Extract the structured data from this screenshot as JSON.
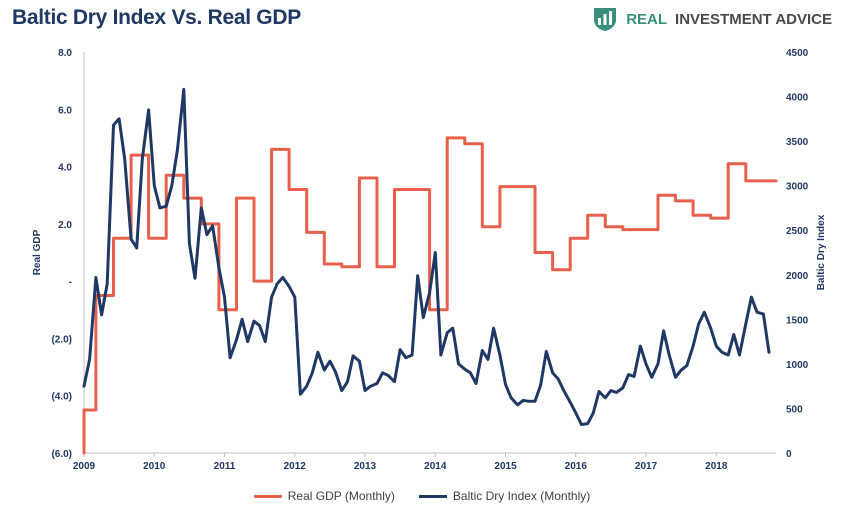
{
  "title": "Baltic Dry Index Vs. Real GDP",
  "brand": {
    "text_real": "REAL",
    "text_rest": "INVESTMENT ADVICE",
    "color": "#3a8f7c",
    "icon": "bar-chart-shield-icon"
  },
  "colors": {
    "gdp": "#e8604c",
    "bdi": "#1f3864",
    "title": "#1f3864"
  },
  "chart_data": {
    "type": "line",
    "title": "Baltic Dry Index Vs. Real GDP",
    "ylabel": "Real GDP",
    "y2label": "Baltic Dry Index",
    "xlim": [
      2009,
      2018.85
    ],
    "ylim": [
      -6,
      8
    ],
    "y2lim": [
      0,
      4500
    ],
    "x_ticks": [
      "2009",
      "2010",
      "2011",
      "2012",
      "2013",
      "2014",
      "2015",
      "2016",
      "2017",
      "2018"
    ],
    "y_ticks": [
      "8.0",
      "6.0",
      "4.0",
      "2.0",
      "-",
      "(2.0)",
      "(4.0)",
      "(6.0)"
    ],
    "y2_ticks": [
      "4500",
      "4000",
      "3500",
      "3000",
      "2500",
      "2000",
      "1500",
      "1000",
      "500",
      "0"
    ],
    "grid": false,
    "legend_position": "bottom",
    "series": [
      {
        "name": "Real GDP (Monthly)",
        "axis": "left",
        "step": true,
        "points": [
          [
            2009.0,
            -6.0
          ],
          [
            2009.0,
            -4.5
          ],
          [
            2009.17,
            -4.5
          ],
          [
            2009.17,
            -0.5
          ],
          [
            2009.42,
            -0.5
          ],
          [
            2009.42,
            1.5
          ],
          [
            2009.67,
            1.5
          ],
          [
            2009.67,
            4.4
          ],
          [
            2009.92,
            4.4
          ],
          [
            2009.92,
            1.5
          ],
          [
            2010.17,
            1.5
          ],
          [
            2010.17,
            3.7
          ],
          [
            2010.42,
            3.7
          ],
          [
            2010.42,
            2.9
          ],
          [
            2010.67,
            2.9
          ],
          [
            2010.67,
            2.0
          ],
          [
            2010.92,
            2.0
          ],
          [
            2010.92,
            -1.0
          ],
          [
            2011.17,
            -1.0
          ],
          [
            2011.17,
            2.9
          ],
          [
            2011.42,
            2.9
          ],
          [
            2011.42,
            0.0
          ],
          [
            2011.67,
            0.0
          ],
          [
            2011.67,
            4.6
          ],
          [
            2011.92,
            4.6
          ],
          [
            2011.92,
            3.2
          ],
          [
            2012.17,
            3.2
          ],
          [
            2012.17,
            1.7
          ],
          [
            2012.42,
            1.7
          ],
          [
            2012.42,
            0.6
          ],
          [
            2012.67,
            0.6
          ],
          [
            2012.67,
            0.5
          ],
          [
            2012.92,
            0.5
          ],
          [
            2012.92,
            3.6
          ],
          [
            2013.17,
            3.6
          ],
          [
            2013.17,
            0.5
          ],
          [
            2013.42,
            0.5
          ],
          [
            2013.42,
            3.2
          ],
          [
            2013.67,
            3.2
          ],
          [
            2013.67,
            3.2
          ],
          [
            2013.92,
            3.2
          ],
          [
            2013.92,
            -1.0
          ],
          [
            2014.17,
            -1.0
          ],
          [
            2014.17,
            5.0
          ],
          [
            2014.42,
            5.0
          ],
          [
            2014.42,
            4.8
          ],
          [
            2014.67,
            4.8
          ],
          [
            2014.67,
            1.9
          ],
          [
            2014.92,
            1.9
          ],
          [
            2014.92,
            3.3
          ],
          [
            2015.17,
            3.3
          ],
          [
            2015.17,
            3.3
          ],
          [
            2015.42,
            3.3
          ],
          [
            2015.42,
            1.0
          ],
          [
            2015.67,
            1.0
          ],
          [
            2015.67,
            0.4
          ],
          [
            2015.92,
            0.4
          ],
          [
            2015.92,
            1.5
          ],
          [
            2016.17,
            1.5
          ],
          [
            2016.17,
            2.3
          ],
          [
            2016.42,
            2.3
          ],
          [
            2016.42,
            1.9
          ],
          [
            2016.67,
            1.9
          ],
          [
            2016.67,
            1.8
          ],
          [
            2016.92,
            1.8
          ],
          [
            2016.92,
            1.8
          ],
          [
            2017.17,
            1.8
          ],
          [
            2017.17,
            3.0
          ],
          [
            2017.42,
            3.0
          ],
          [
            2017.42,
            2.8
          ],
          [
            2017.67,
            2.8
          ],
          [
            2017.67,
            2.3
          ],
          [
            2017.92,
            2.3
          ],
          [
            2017.92,
            2.2
          ],
          [
            2018.17,
            2.2
          ],
          [
            2018.17,
            4.1
          ],
          [
            2018.42,
            4.1
          ],
          [
            2018.42,
            3.5
          ],
          [
            2018.85,
            3.5
          ]
        ]
      },
      {
        "name": "Baltic Dry Index (Monthly)",
        "axis": "right",
        "step": false,
        "points": [
          [
            2009.0,
            750
          ],
          [
            2009.08,
            1050
          ],
          [
            2009.17,
            1970
          ],
          [
            2009.25,
            1550
          ],
          [
            2009.33,
            1900
          ],
          [
            2009.42,
            3680
          ],
          [
            2009.5,
            3750
          ],
          [
            2009.58,
            3300
          ],
          [
            2009.67,
            2400
          ],
          [
            2009.75,
            2300
          ],
          [
            2009.83,
            3300
          ],
          [
            2009.92,
            3850
          ],
          [
            2010.0,
            3000
          ],
          [
            2010.08,
            2750
          ],
          [
            2010.17,
            2770
          ],
          [
            2010.25,
            3000
          ],
          [
            2010.33,
            3400
          ],
          [
            2010.42,
            4080
          ],
          [
            2010.5,
            2350
          ],
          [
            2010.58,
            1960
          ],
          [
            2010.67,
            2750
          ],
          [
            2010.75,
            2450
          ],
          [
            2010.83,
            2550
          ],
          [
            2010.92,
            2080
          ],
          [
            2011.0,
            1750
          ],
          [
            2011.08,
            1070
          ],
          [
            2011.17,
            1270
          ],
          [
            2011.25,
            1500
          ],
          [
            2011.33,
            1250
          ],
          [
            2011.42,
            1480
          ],
          [
            2011.5,
            1430
          ],
          [
            2011.58,
            1250
          ],
          [
            2011.67,
            1750
          ],
          [
            2011.75,
            1900
          ],
          [
            2011.83,
            1970
          ],
          [
            2011.92,
            1870
          ],
          [
            2012.0,
            1750
          ],
          [
            2012.08,
            660
          ],
          [
            2012.17,
            750
          ],
          [
            2012.25,
            900
          ],
          [
            2012.33,
            1130
          ],
          [
            2012.42,
            930
          ],
          [
            2012.5,
            1030
          ],
          [
            2012.58,
            910
          ],
          [
            2012.67,
            700
          ],
          [
            2012.75,
            800
          ],
          [
            2012.83,
            1090
          ],
          [
            2012.92,
            1030
          ],
          [
            2013.0,
            700
          ],
          [
            2013.08,
            750
          ],
          [
            2013.17,
            780
          ],
          [
            2013.25,
            900
          ],
          [
            2013.33,
            870
          ],
          [
            2013.42,
            800
          ],
          [
            2013.5,
            1160
          ],
          [
            2013.58,
            1070
          ],
          [
            2013.67,
            1100
          ],
          [
            2013.75,
            1990
          ],
          [
            2013.83,
            1520
          ],
          [
            2013.92,
            1800
          ],
          [
            2014.0,
            2250
          ],
          [
            2014.08,
            1100
          ],
          [
            2014.17,
            1350
          ],
          [
            2014.25,
            1400
          ],
          [
            2014.33,
            1000
          ],
          [
            2014.42,
            940
          ],
          [
            2014.5,
            900
          ],
          [
            2014.58,
            780
          ],
          [
            2014.67,
            1150
          ],
          [
            2014.75,
            1050
          ],
          [
            2014.83,
            1400
          ],
          [
            2014.92,
            1100
          ],
          [
            2015.0,
            770
          ],
          [
            2015.08,
            620
          ],
          [
            2015.17,
            540
          ],
          [
            2015.25,
            590
          ],
          [
            2015.33,
            580
          ],
          [
            2015.42,
            580
          ],
          [
            2015.5,
            760
          ],
          [
            2015.58,
            1140
          ],
          [
            2015.67,
            900
          ],
          [
            2015.75,
            830
          ],
          [
            2015.83,
            700
          ],
          [
            2015.92,
            570
          ],
          [
            2016.0,
            450
          ],
          [
            2016.08,
            320
          ],
          [
            2016.17,
            330
          ],
          [
            2016.25,
            450
          ],
          [
            2016.33,
            690
          ],
          [
            2016.42,
            620
          ],
          [
            2016.5,
            700
          ],
          [
            2016.58,
            680
          ],
          [
            2016.67,
            730
          ],
          [
            2016.75,
            880
          ],
          [
            2016.83,
            860
          ],
          [
            2016.92,
            1200
          ],
          [
            2017.0,
            1000
          ],
          [
            2017.08,
            850
          ],
          [
            2017.17,
            1000
          ],
          [
            2017.25,
            1370
          ],
          [
            2017.33,
            1100
          ],
          [
            2017.42,
            850
          ],
          [
            2017.5,
            930
          ],
          [
            2017.58,
            980
          ],
          [
            2017.67,
            1200
          ],
          [
            2017.75,
            1450
          ],
          [
            2017.83,
            1580
          ],
          [
            2017.92,
            1400
          ],
          [
            2018.0,
            1200
          ],
          [
            2018.08,
            1130
          ],
          [
            2018.17,
            1100
          ],
          [
            2018.25,
            1330
          ],
          [
            2018.33,
            1100
          ],
          [
            2018.42,
            1450
          ],
          [
            2018.5,
            1750
          ],
          [
            2018.58,
            1580
          ],
          [
            2018.67,
            1560
          ],
          [
            2018.75,
            1130
          ]
        ]
      }
    ]
  }
}
